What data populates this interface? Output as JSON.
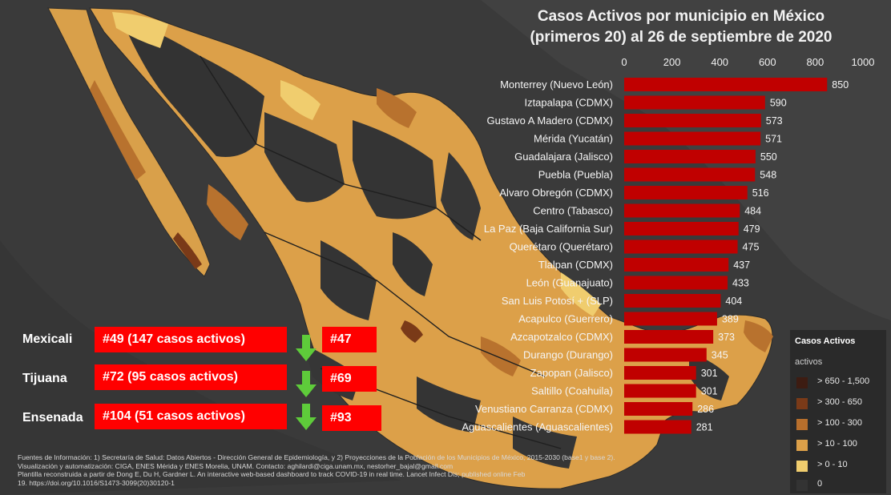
{
  "title_line1": "Casos Activos por municipio en México",
  "title_line2": "(primeros 20) al 26 de septiembre de 2020",
  "chart_data": {
    "type": "bar",
    "orientation": "horizontal",
    "title": "Casos Activos por municipio en México (primeros 20) al 26 de septiembre de 2020",
    "xlim": [
      0,
      1000
    ],
    "ticks": [
      "0",
      "200",
      "400",
      "600",
      "800",
      "1000"
    ],
    "tick_values": [
      0,
      200,
      400,
      600,
      800,
      1000
    ],
    "categories": [
      "Monterrey (Nuevo León)",
      "Iztapalapa (CDMX)",
      "Gustavo A Madero (CDMX)",
      "Mérida (Yucatán)",
      "Guadalajara (Jalisco)",
      "Puebla (Puebla)",
      "Alvaro Obregón (CDMX)",
      "Centro (Tabasco)",
      "La Paz (Baja California Sur)",
      "Querétaro (Querétaro)",
      "Tlalpan (CDMX)",
      "León (Guanajuato)",
      "San Luis Potosí + (SLP)",
      "Acapulco (Guerrero)",
      "Azcapotzalco (CDMX)",
      "Durango (Durango)",
      "Zapopan (Jalisco)",
      "Saltillo (Coahuila)",
      "Venustiano Carranza (CDMX)",
      "Aguascalientes (Aguascalientes)"
    ],
    "values": [
      850,
      590,
      573,
      571,
      550,
      548,
      516,
      484,
      479,
      475,
      437,
      433,
      404,
      389,
      373,
      345,
      301,
      301,
      286,
      281
    ],
    "bar_color": "#c00000"
  },
  "rankings": [
    {
      "city": "Mexicali",
      "current": "#49 (147 casos activos)",
      "previous": "#47"
    },
    {
      "city": "Tijuana",
      "current": "#72 (95 casos activos)",
      "previous": "#69"
    },
    {
      "city": "Ensenada",
      "current": "#104 (51 casos activos)",
      "previous": "#93"
    }
  ],
  "legend": {
    "title": "Casos Activos",
    "subtitle": "activos",
    "items": [
      {
        "label": "> 650 - 1,500",
        "color": "#3d1c12"
      },
      {
        "label": "> 300 - 650",
        "color": "#7a3a18"
      },
      {
        "label": "> 100 - 300",
        "color": "#b86f2c"
      },
      {
        "label": "> 10 - 100",
        "color": "#dca049"
      },
      {
        "label": "> 0 - 10",
        "color": "#f0cd6e"
      },
      {
        "label": "0",
        "color": "#333333"
      }
    ]
  },
  "sources": {
    "line1": "Fuentes de Información: 1) Secretaría de Salud: Datos Abiertos - Dirección General de Epidemiología, y 2) Proyecciones de la Población de los Municipios de México, 2015-2030 (base1 y base 2).",
    "line2": "Visualización y automatización: CIGA, ENES Mérida y ENES Morelia, UNAM. Contacto: aghilardi@ciga.unam.mx, nestorher_bajal@gmail.com",
    "line3": "Plantilla reconstruida a partir de Dong E, Du H, Gardner L. An interactive web-based dashboard to track COVID-19 in real time. Lancet Infect Dis; published online Feb",
    "line4": "19. https://doi.org/10.1016/S1473-3099(20)30120-1"
  }
}
